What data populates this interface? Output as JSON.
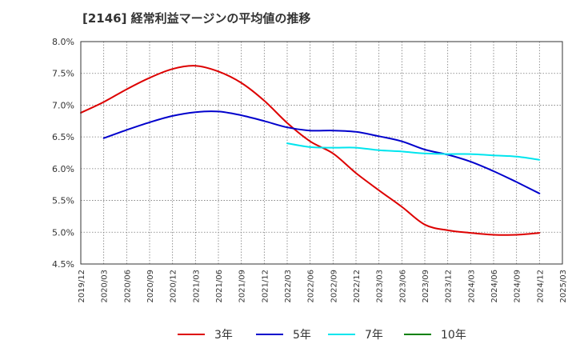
{
  "chart_data": {
    "type": "line",
    "title": "[2146]  経常利益マージンの平均値の推移",
    "y_ticks": [
      "4.5%",
      "5.0%",
      "5.5%",
      "6.0%",
      "6.5%",
      "7.0%",
      "7.5%",
      "8.0%"
    ],
    "ylim": [
      4.5,
      8.0
    ],
    "x_ticks": [
      "2019/12",
      "2020/03",
      "2020/06",
      "2020/09",
      "2020/12",
      "2021/03",
      "2021/06",
      "2021/09",
      "2021/12",
      "2022/03",
      "2022/06",
      "2022/09",
      "2022/12",
      "2023/03",
      "2023/06",
      "2023/09",
      "2023/12",
      "2024/03",
      "2024/06",
      "2024/09",
      "2024/12",
      "2025/03"
    ],
    "grid": true,
    "legend_position": "bottom",
    "series": [
      {
        "name": "3年",
        "color": "#dd0000",
        "points": [
          [
            "2019/12",
            6.88
          ],
          [
            "2020/03",
            7.05
          ],
          [
            "2020/06",
            7.25
          ],
          [
            "2020/09",
            7.43
          ],
          [
            "2020/12",
            7.57
          ],
          [
            "2021/03",
            7.62
          ],
          [
            "2021/06",
            7.53
          ],
          [
            "2021/09",
            7.35
          ],
          [
            "2021/12",
            7.07
          ],
          [
            "2022/03",
            6.72
          ],
          [
            "2022/06",
            6.43
          ],
          [
            "2022/09",
            6.24
          ],
          [
            "2022/12",
            5.93
          ],
          [
            "2023/03",
            5.66
          ],
          [
            "2023/06",
            5.4
          ],
          [
            "2023/09",
            5.12
          ],
          [
            "2023/12",
            5.03
          ],
          [
            "2024/03",
            4.99
          ],
          [
            "2024/06",
            4.96
          ],
          [
            "2024/09",
            4.96
          ],
          [
            "2024/12",
            4.99
          ]
        ]
      },
      {
        "name": "5年",
        "color": "#0000cc",
        "points": [
          [
            "2020/03",
            6.48
          ],
          [
            "2020/06",
            6.61
          ],
          [
            "2020/09",
            6.73
          ],
          [
            "2020/12",
            6.83
          ],
          [
            "2021/03",
            6.89
          ],
          [
            "2021/06",
            6.9
          ],
          [
            "2021/09",
            6.84
          ],
          [
            "2021/12",
            6.75
          ],
          [
            "2022/03",
            6.65
          ],
          [
            "2022/06",
            6.6
          ],
          [
            "2022/09",
            6.6
          ],
          [
            "2022/12",
            6.58
          ],
          [
            "2023/03",
            6.51
          ],
          [
            "2023/06",
            6.43
          ],
          [
            "2023/09",
            6.3
          ],
          [
            "2023/12",
            6.22
          ],
          [
            "2024/03",
            6.11
          ],
          [
            "2024/06",
            5.96
          ],
          [
            "2024/09",
            5.79
          ],
          [
            "2024/12",
            5.61
          ]
        ]
      },
      {
        "name": "7年",
        "color": "#00e5ee",
        "points": [
          [
            "2022/03",
            6.4
          ],
          [
            "2022/06",
            6.34
          ],
          [
            "2022/09",
            6.33
          ],
          [
            "2022/12",
            6.33
          ],
          [
            "2023/03",
            6.29
          ],
          [
            "2023/06",
            6.27
          ],
          [
            "2023/09",
            6.24
          ],
          [
            "2023/12",
            6.23
          ],
          [
            "2024/03",
            6.23
          ],
          [
            "2024/06",
            6.21
          ],
          [
            "2024/09",
            6.19
          ],
          [
            "2024/12",
            6.14
          ]
        ]
      },
      {
        "name": "10年",
        "color": "#008000",
        "points": []
      }
    ]
  }
}
